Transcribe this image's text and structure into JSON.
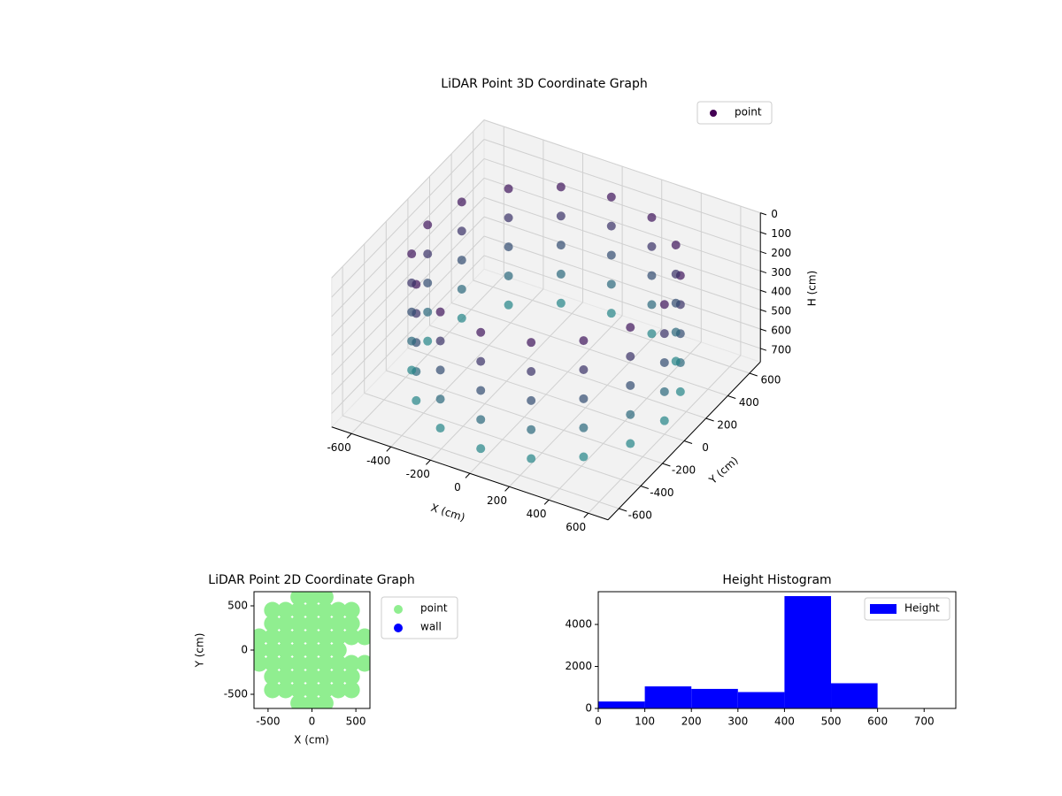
{
  "chart_data": [
    {
      "type": "scatter3d",
      "title": "LiDAR Point 3D Coordinate Graph",
      "xlabel": "X (cm)",
      "ylabel": "Y (cm)",
      "zlabel": "H (cm)",
      "xlim": [
        -700,
        700
      ],
      "ylim": [
        -700,
        700
      ],
      "zlim": [
        0,
        770
      ],
      "z_inverted": true,
      "xticks": [
        -600,
        -400,
        -200,
        0,
        200,
        400,
        600
      ],
      "yticks": [
        -600,
        -400,
        -200,
        0,
        200,
        400,
        600
      ],
      "zticks": [
        0,
        100,
        200,
        300,
        400,
        500,
        600,
        700
      ],
      "grid": true,
      "legend": "upper right",
      "point_colors": [
        "#440154",
        "#21918c"
      ],
      "series": [
        {
          "name": "point",
          "color": "#440154",
          "x": [
            600,
            554,
            424,
            230,
            0,
            -230,
            -424,
            -554,
            -600,
            -554,
            -424,
            -230,
            0,
            230,
            424,
            554,
            600,
            554,
            424,
            230,
            0,
            -230,
            -424,
            -554,
            -600,
            -554,
            -424,
            -230,
            0,
            230,
            424,
            554,
            600,
            554,
            424,
            230,
            0,
            -230,
            -424,
            -554,
            -600,
            -554,
            -424,
            -230,
            0,
            230,
            424,
            554,
            600,
            554,
            424,
            230,
            0,
            -230,
            -424,
            -554,
            -600,
            -554,
            -424,
            -230,
            0,
            230,
            424,
            554,
            600,
            554,
            424,
            230,
            0,
            -230,
            -424,
            -554,
            -600,
            -554,
            -424,
            -230,
            0,
            230,
            424,
            554
          ],
          "y": [
            0,
            230,
            424,
            554,
            600,
            554,
            424,
            230,
            0,
            -230,
            -424,
            -554,
            -600,
            -554,
            -424,
            -230,
            0,
            230,
            424,
            554,
            600,
            554,
            424,
            230,
            0,
            -230,
            -424,
            -554,
            -600,
            -554,
            -424,
            -230,
            0,
            230,
            424,
            554,
            600,
            554,
            424,
            230,
            0,
            -230,
            -424,
            -554,
            -600,
            -554,
            -424,
            -230,
            0,
            230,
            424,
            554,
            600,
            554,
            424,
            230,
            0,
            -230,
            -424,
            -554,
            -600,
            -554,
            -424,
            -230,
            0,
            230,
            424,
            554,
            600,
            554,
            424,
            230,
            0,
            -230,
            -424,
            -554,
            -600,
            -554,
            -424,
            -230
          ],
          "z": [
            100,
            100,
            100,
            100,
            100,
            100,
            100,
            100,
            100,
            100,
            100,
            100,
            100,
            100,
            100,
            100,
            250,
            250,
            250,
            250,
            250,
            250,
            250,
            250,
            250,
            250,
            250,
            250,
            250,
            250,
            250,
            250,
            400,
            400,
            400,
            400,
            400,
            400,
            400,
            400,
            400,
            400,
            400,
            400,
            400,
            400,
            400,
            400,
            550,
            550,
            550,
            550,
            550,
            550,
            550,
            550,
            550,
            550,
            550,
            550,
            550,
            550,
            550,
            550,
            700,
            700,
            700,
            700,
            700,
            700,
            700,
            700,
            700,
            700,
            700,
            700,
            700,
            700,
            700,
            700
          ]
        }
      ]
    },
    {
      "type": "scatter",
      "title": "LiDAR Point 2D Coordinate Graph",
      "xlabel": "X (cm)",
      "ylabel": "Y (cm)",
      "xlim": [
        -660,
        660
      ],
      "ylim": [
        -660,
        660
      ],
      "xticks": [
        -500,
        0,
        500
      ],
      "yticks": [
        -500,
        0,
        500
      ],
      "legend": "outside upper right",
      "series": [
        {
          "name": "point",
          "color": "#90ee90",
          "x": [
            -150,
            0,
            150,
            -450,
            -300,
            -150,
            0,
            150,
            300,
            450,
            -450,
            -300,
            -150,
            0,
            150,
            300,
            450,
            -600,
            -450,
            -300,
            -150,
            0,
            150,
            300,
            450,
            600,
            -600,
            -450,
            -300,
            -150,
            0,
            150,
            300,
            -600,
            -450,
            -300,
            -150,
            0,
            150,
            300,
            450,
            600,
            -450,
            -300,
            -150,
            0,
            150,
            300,
            450,
            -450,
            -300,
            -150,
            0,
            150,
            300,
            450,
            -150,
            0,
            150
          ],
          "y": [
            600,
            600,
            600,
            450,
            450,
            450,
            450,
            450,
            450,
            450,
            300,
            300,
            300,
            300,
            300,
            300,
            300,
            150,
            150,
            150,
            150,
            150,
            150,
            150,
            150,
            150,
            0,
            0,
            0,
            0,
            0,
            0,
            0,
            -150,
            -150,
            -150,
            -150,
            -150,
            -150,
            -150,
            -150,
            -150,
            -300,
            -300,
            -300,
            -300,
            -300,
            -300,
            -300,
            -450,
            -450,
            -450,
            -450,
            -450,
            -450,
            -450,
            -600,
            -600,
            -600
          ]
        },
        {
          "name": "wall",
          "color": "#0000ff",
          "x": [],
          "y": []
        }
      ]
    },
    {
      "type": "histogram",
      "title": "Height Histogram",
      "name": "Height",
      "color": "#0000ff",
      "legend": "upper right",
      "bins": [
        0,
        100,
        200,
        300,
        400,
        500,
        600,
        700
      ],
      "counts": [
        330,
        1050,
        930,
        780,
        5350,
        1200,
        0
      ],
      "xlim": [
        0,
        768
      ],
      "ylim": [
        0,
        5560
      ],
      "xticks": [
        0,
        100,
        200,
        300,
        400,
        500,
        600,
        700
      ],
      "yticks": [
        0,
        2000,
        4000
      ]
    }
  ]
}
